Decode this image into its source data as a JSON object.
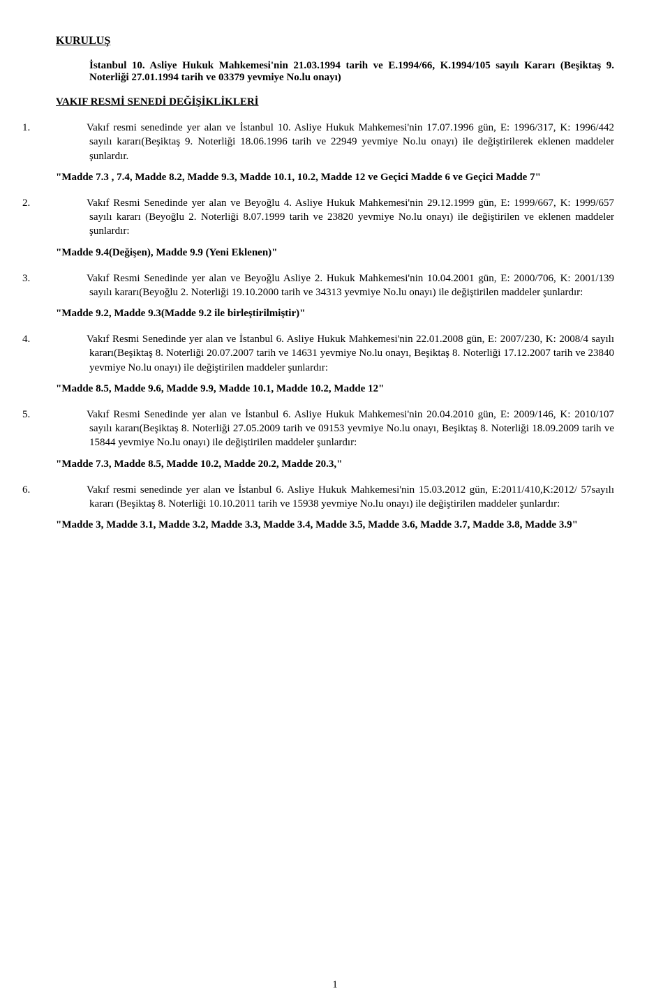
{
  "heading": "KURULUŞ",
  "intro": "İstanbul 10. Asliye Hukuk Mahkemesi'nin 21.03.1994 tarih ve E.1994/66, K.1994/105 sayılı Kararı (Beşiktaş 9. Noterliği 27.01.1994 tarih ve 03379 yevmiye No.lu onayı)",
  "subheading": "VAKIF RESMİ SENEDİ DEĞİŞİKLİKLERİ",
  "items": [
    {
      "num": "1.",
      "body": "Vakıf resmi senedinde yer alan ve İstanbul 10. Asliye Hukuk Mahkemesi'nin 17.07.1996 gün, E: 1996/317, K: 1996/442 sayılı kararı(Beşiktaş 9. Noterliği 18.06.1996 tarih ve 22949 yevmiye No.lu onayı) ile değiştirilerek eklenen maddeler şunlardır.",
      "quote": "\"Madde 7.3 , 7.4, Madde 8.2, Madde 9.3, Madde 10.1, 10.2, Madde 12 ve Geçici Madde 6 ve Geçici Madde 7\""
    },
    {
      "num": "2.",
      "body": "Vakıf Resmi Senedinde yer alan ve Beyoğlu 4. Asliye Hukuk Mahkemesi'nin 29.12.1999 gün, E: 1999/667, K: 1999/657 sayılı kararı (Beyoğlu 2. Noterliği 8.07.1999 tarih ve 23820 yevmiye No.lu onayı) ile değiştirilen ve eklenen maddeler şunlardır:",
      "quote": "\"Madde 9.4(Değişen), Madde 9.9 (Yeni Eklenen)\""
    },
    {
      "num": "3.",
      "body": "Vakıf Resmi Senedinde yer alan ve Beyoğlu Asliye 2. Hukuk Mahkemesi'nin 10.04.2001 gün, E: 2000/706, K: 2001/139 sayılı kararı(Beyoğlu 2. Noterliği 19.10.2000 tarih ve 34313 yevmiye No.lu onayı) ile değiştirilen maddeler şunlardır:",
      "quote": "\"Madde 9.2, Madde 9.3(Madde 9.2 ile birleştirilmiştir)\""
    },
    {
      "num": "4.",
      "body": "Vakıf Resmi Senedinde yer alan ve İstanbul  6. Asliye  Hukuk Mahkemesi'nin 22.01.2008 gün, E: 2007/230, K: 2008/4 sayılı kararı(Beşiktaş 8. Noterliği 20.07.2007 tarih ve 14631 yevmiye No.lu onayı, Beşiktaş 8. Noterliği 17.12.2007 tarih ve 23840 yevmiye No.lu onayı) ile değiştirilen maddeler şunlardır:",
      "quote": "\"Madde 8.5, Madde 9.6, Madde 9.9, Madde 10.1, Madde 10.2, Madde 12\""
    },
    {
      "num": "5.",
      "body": "Vakıf Resmi Senedinde yer alan ve İstanbul  6. Asliye  Hukuk Mahkemesi'nin 20.04.2010 gün, E: 2009/146, K: 2010/107 sayılı kararı(Beşiktaş 8. Noterliği 27.05.2009 tarih ve 09153 yevmiye No.lu onayı, Beşiktaş 8. Noterliği 18.09.2009 tarih ve 15844 yevmiye No.lu onayı) ile değiştirilen maddeler şunlardır:",
      "quote": "\"Madde 7.3, Madde 8.5, Madde 10.2,  Madde 20.2, Madde 20.3,\""
    },
    {
      "num": "6.",
      "body": "Vakıf resmi senedinde yer alan ve İstanbul 6. Asliye Hukuk Mahkemesi'nin 15.03.2012 gün, E:2011/410,K:2012/ 57sayılı kararı (Beşiktaş 8. Noterliği 10.10.2011 tarih ve 15938 yevmiye No.lu onayı) ile değiştirilen maddeler şunlardır:",
      "quote": "\"Madde 3, Madde 3.1, Madde 3.2, Madde 3.3, Madde 3.4, Madde 3.5, Madde 3.6, Madde 3.7, Madde 3.8, Madde 3.9\""
    }
  ],
  "pageNumber": "1"
}
